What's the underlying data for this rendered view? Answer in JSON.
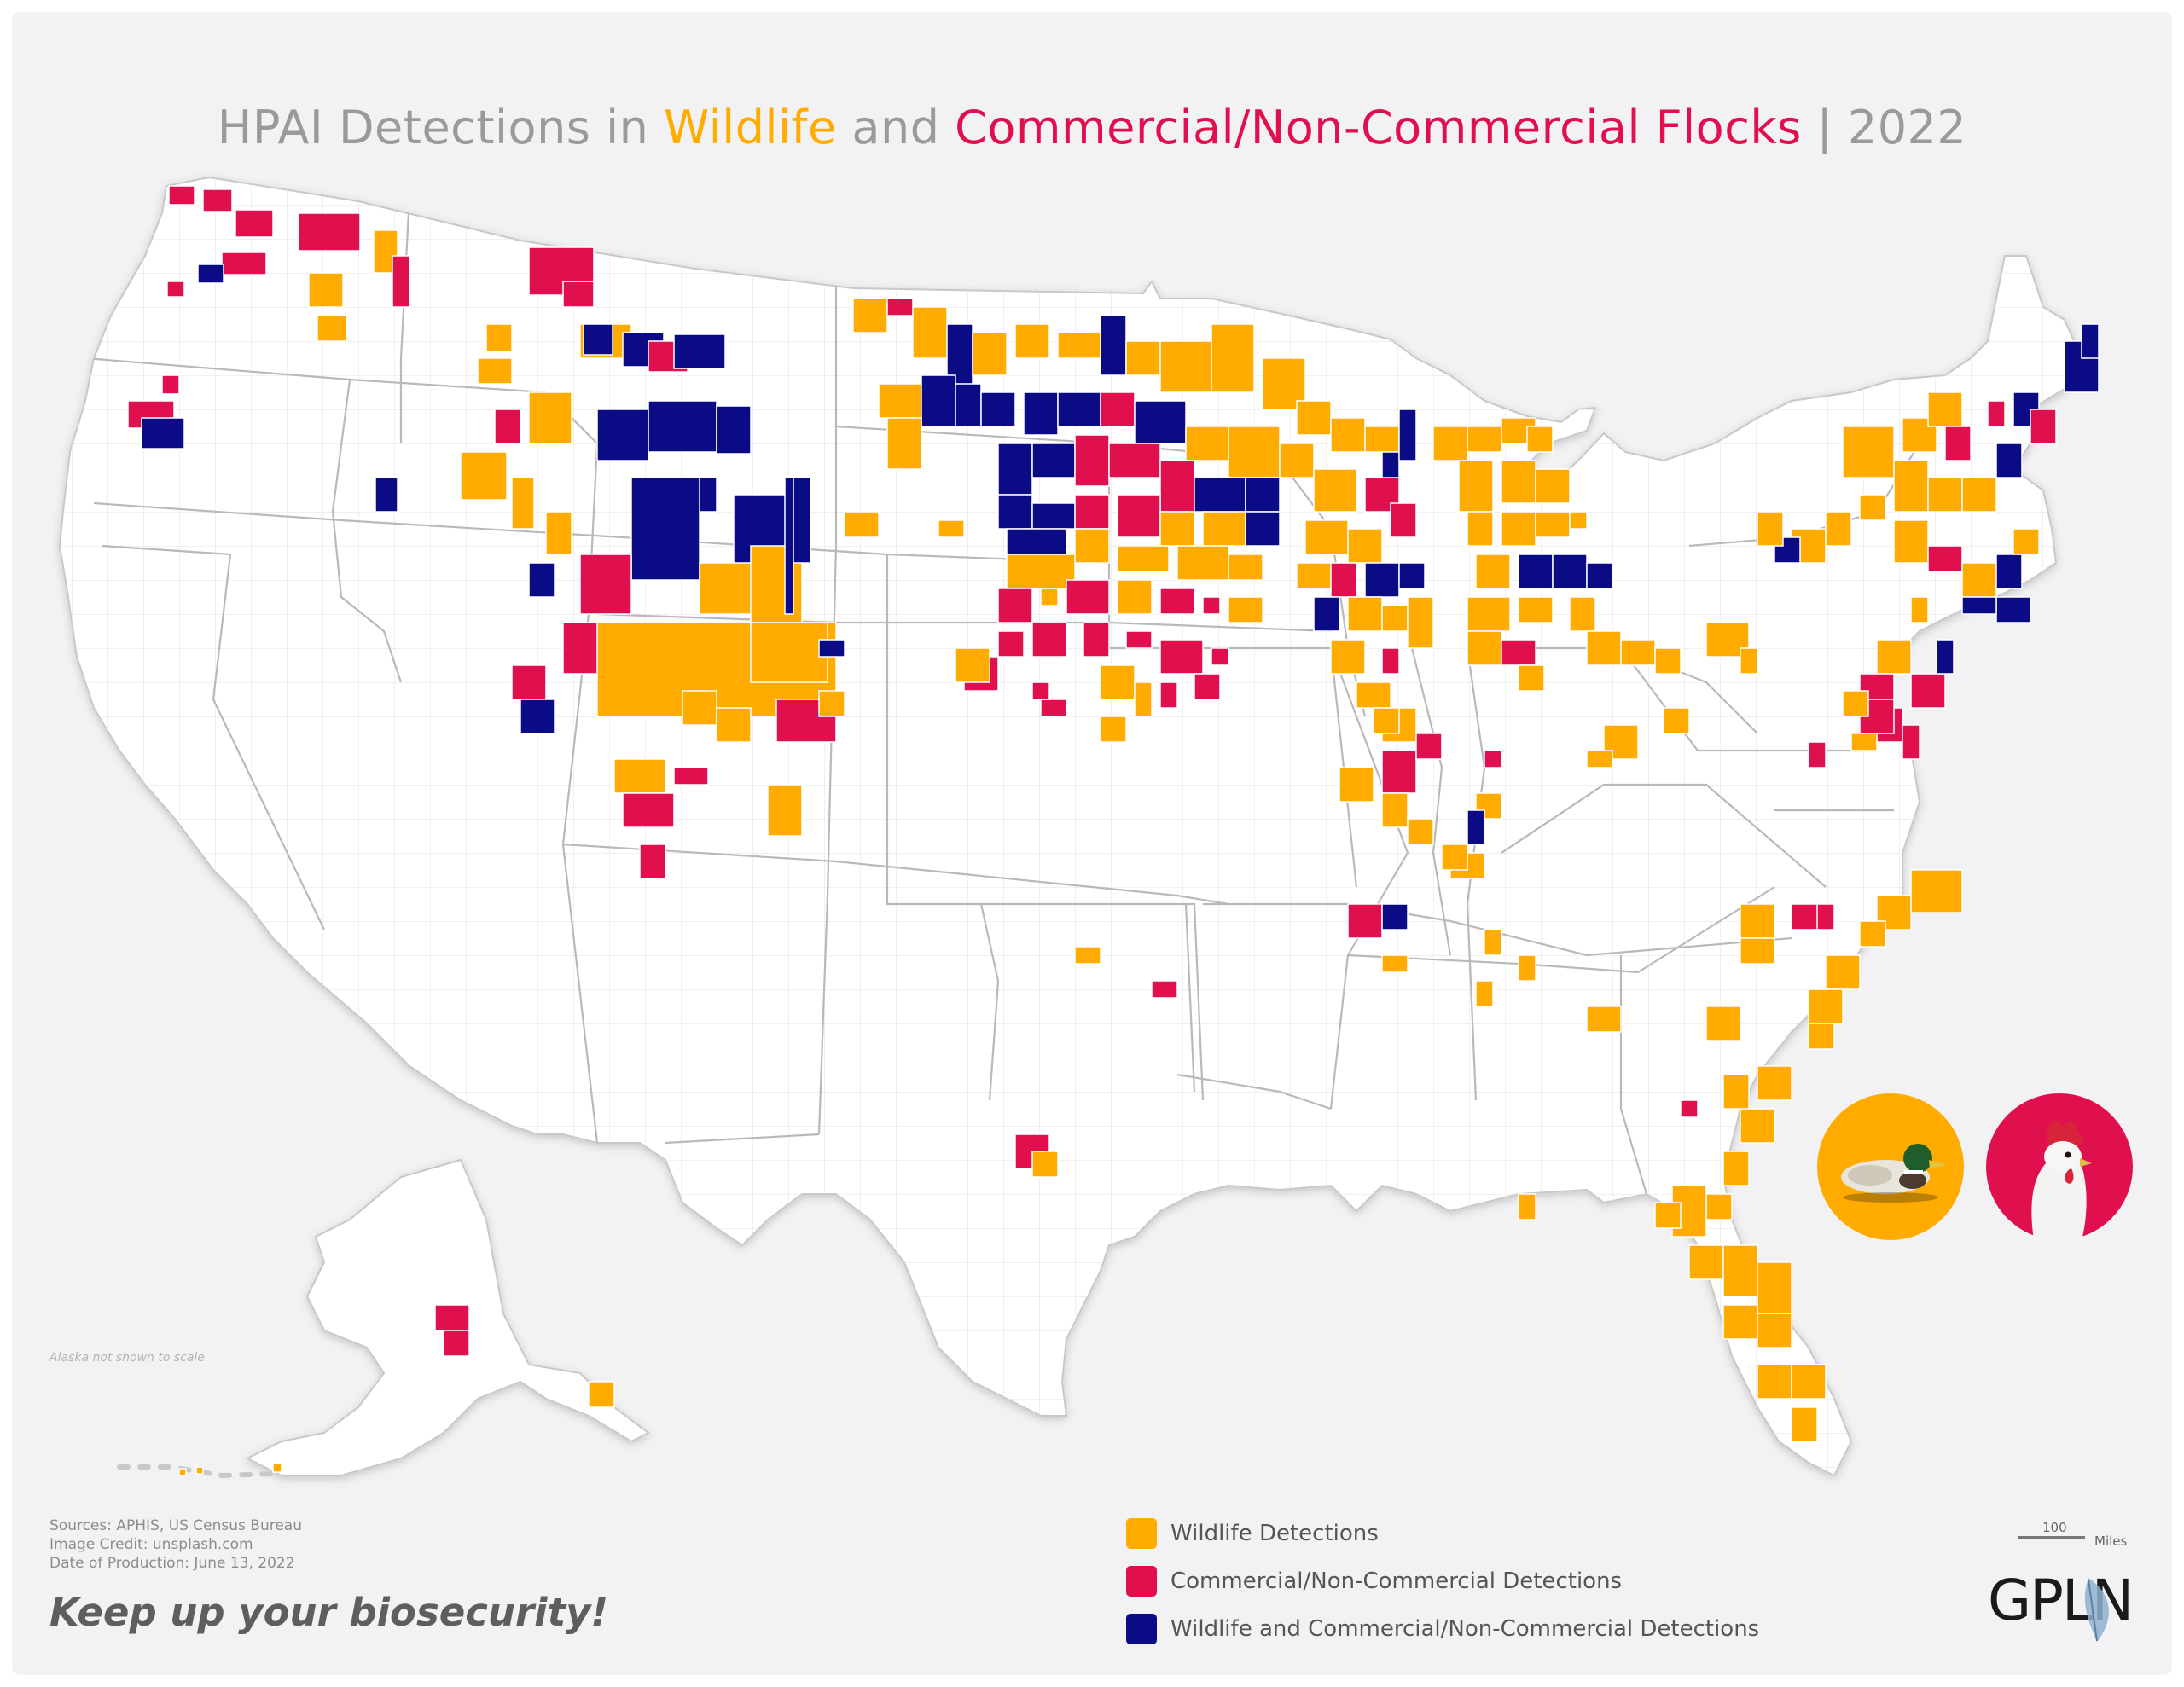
{
  "title": {
    "prefix": "HPAI Detections in ",
    "wildlife": "Wildlife",
    "middle": " and ",
    "flocks": "Commercial/Non-Commercial Flocks",
    "suffix": " | 2022"
  },
  "colors": {
    "wildlife": "#ffab00",
    "commercial": "#e0104e",
    "both": "#0b0b86",
    "land": "#ffffff",
    "border": "#bdbdbd",
    "background": "#f2f2f4"
  },
  "alaska_note": "Alaska not shown to scale",
  "credits": {
    "sources": "Sources: APHIS, US Census Bureau",
    "image_credit": "Image Credit: unsplash.com",
    "date": "Date of Production: June 13, 2022"
  },
  "slogan": "Keep up your biosecurity!",
  "legend": [
    {
      "label": "Wildlife Detections",
      "color": "#ffab00"
    },
    {
      "label": "Commercial/Non-Commercial Detections",
      "color": "#e0104e"
    },
    {
      "label": "Wildlife and Commercial/Non-Commercial Detections",
      "color": "#0b0b86"
    }
  ],
  "scale": {
    "value": "100",
    "unit": "Miles"
  },
  "logo": "GPLN",
  "icons": {
    "duck": "mallard-duck-icon",
    "chicken": "chicken-icon"
  }
}
